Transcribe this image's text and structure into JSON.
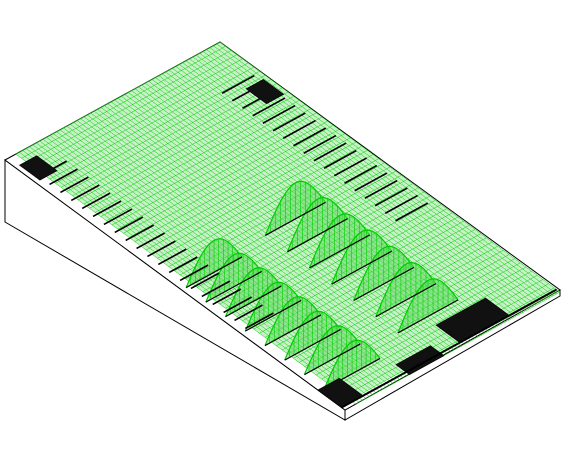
{
  "model": {
    "view": "isometric",
    "background_color": "#ffffff",
    "mesh_color": "#00cc00",
    "mesh_fill_color": "#5fd95f",
    "edge_color": "#000000",
    "electrode_color": "#111111",
    "base_color": "#ffffff",
    "ridge_count_front": 8,
    "ridge_count_right": 7,
    "ridge_shape": "sinusoidal",
    "comb_finger_count_left": 20,
    "comb_finger_count_top": 18
  }
}
